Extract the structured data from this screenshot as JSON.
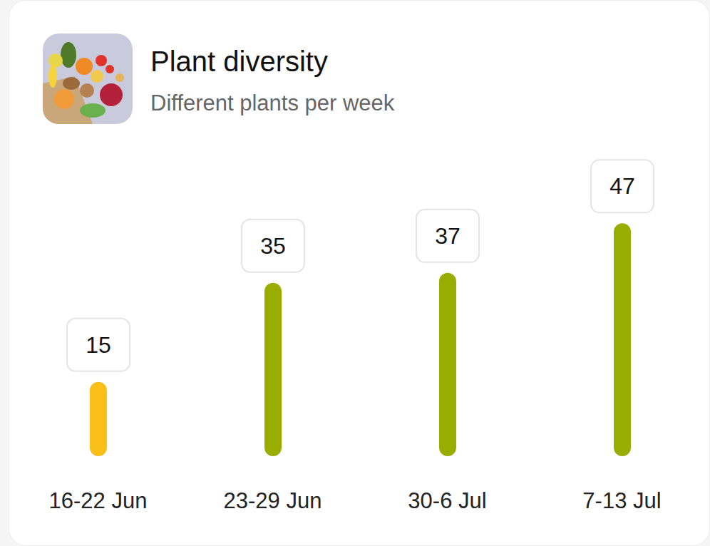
{
  "chart_data": {
    "type": "bar",
    "title": "Plant diversity",
    "subtitle": "Different plants per week",
    "categories": [
      "16-22 Jun",
      "23-29 Jun",
      "30-6 Jul",
      "7-13 Jul"
    ],
    "values": [
      15,
      35,
      37,
      47
    ],
    "colors": [
      "#fbbf1a",
      "#98ad00",
      "#98ad00",
      "#98ad00"
    ],
    "ylim": [
      0,
      60
    ],
    "data_labels": true,
    "tick_labels": "x"
  }
}
